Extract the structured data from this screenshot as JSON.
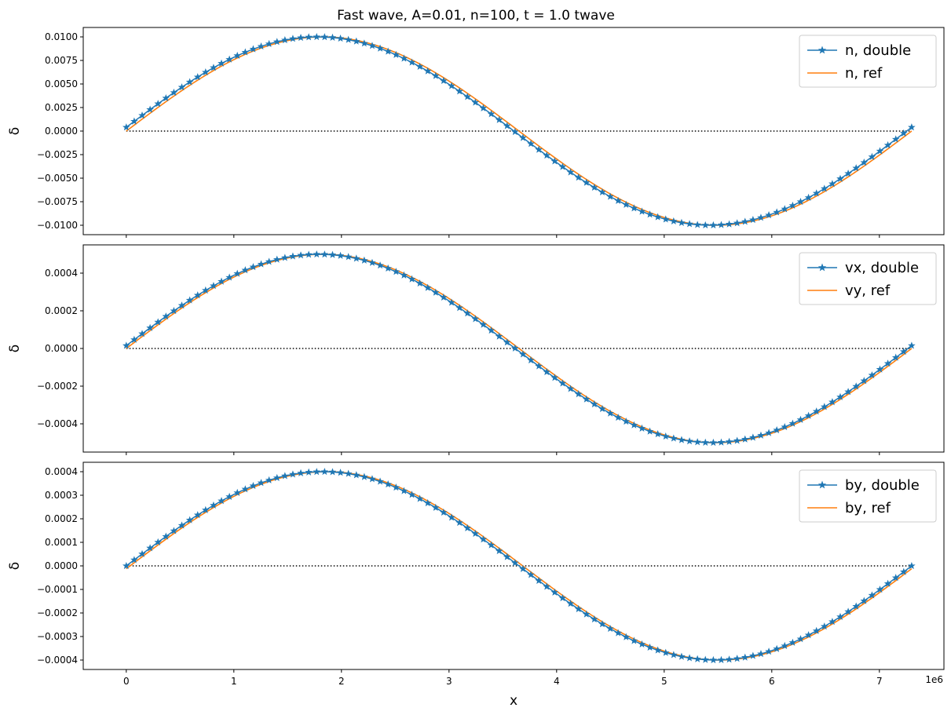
{
  "figure": {
    "title": "Fast wave, A=0.01, n=100, t = 1.0 twave",
    "xlabel": "x",
    "x_offset_label": "1e6"
  },
  "colors": {
    "series_double": "#1f77b4",
    "series_ref": "#ff7f0e",
    "zero_line": "#000000"
  },
  "chart_data": [
    {
      "type": "line",
      "ylabel": "δ",
      "amplitude": 0.01,
      "xlim": [
        -400000.0,
        7600000.0
      ],
      "ylim": [
        -0.011,
        0.011
      ],
      "x_ticks": [
        0,
        1000000,
        2000000,
        3000000,
        4000000,
        5000000,
        6000000,
        7000000
      ],
      "y_ticks": [
        -0.01,
        -0.0075,
        -0.005,
        -0.0025,
        0.0,
        0.0025,
        0.005,
        0.0075,
        0.01
      ],
      "y_tick_labels": [
        "−0.0100",
        "−0.0075",
        "−0.0050",
        "−0.0025",
        "0.0000",
        "0.0025",
        "0.0050",
        "0.0075",
        "0.0100"
      ],
      "x_tick_labels": [],
      "legend": "top-right",
      "series": [
        {
          "name": "n, double",
          "marker": "star",
          "x_range": [
            0,
            7300000
          ],
          "points": 100,
          "phase_shift": 0.04
        },
        {
          "name": "n, ref",
          "marker": "none",
          "x_range": [
            0,
            7300000
          ],
          "points": 200,
          "phase_shift": 0.0
        }
      ],
      "zero_line": {
        "x_range": [
          0,
          7300000
        ],
        "y": 0
      }
    },
    {
      "type": "line",
      "ylabel": "δ",
      "amplitude": 0.0005,
      "xlim": [
        -400000.0,
        7600000.0
      ],
      "ylim": [
        -0.00055,
        0.00055
      ],
      "x_ticks": [
        0,
        1000000,
        2000000,
        3000000,
        4000000,
        5000000,
        6000000,
        7000000
      ],
      "y_ticks": [
        -0.0004,
        -0.0002,
        0.0,
        0.0002,
        0.0004
      ],
      "y_tick_labels": [
        "−0.0004",
        "−0.0002",
        "0.0000",
        "0.0002",
        "0.0004"
      ],
      "x_tick_labels": [],
      "legend": "top-right",
      "series": [
        {
          "name": "vx, double",
          "marker": "star",
          "x_range": [
            0,
            7300000
          ],
          "points": 100,
          "phase_shift": 0.03
        },
        {
          "name": "vy, ref",
          "marker": "none",
          "x_range": [
            0,
            7300000
          ],
          "points": 200,
          "phase_shift": 0.0
        }
      ],
      "zero_line": {
        "x_range": [
          0,
          7300000
        ],
        "y": 0
      }
    },
    {
      "type": "line",
      "ylabel": "δ",
      "amplitude": 0.0004,
      "xlim": [
        -400000.0,
        7600000.0
      ],
      "ylim": [
        -0.00044,
        0.00044
      ],
      "x_ticks": [
        0,
        1000000,
        2000000,
        3000000,
        4000000,
        5000000,
        6000000,
        7000000
      ],
      "y_ticks": [
        -0.0004,
        -0.0003,
        -0.0002,
        -0.0001,
        0.0,
        0.0001,
        0.0002,
        0.0003,
        0.0004
      ],
      "y_tick_labels": [
        "−0.0004",
        "−0.0003",
        "−0.0002",
        "−0.0001",
        "0.0000",
        "0.0001",
        "0.0002",
        "0.0003",
        "0.0004"
      ],
      "x_tick_labels": [
        "0",
        "1",
        "2",
        "3",
        "4",
        "5",
        "6",
        "7"
      ],
      "legend": "top-right",
      "series": [
        {
          "name": "by, double",
          "marker": "star",
          "x_range": [
            0,
            7300000
          ],
          "points": 100,
          "phase_shift": 0.0
        },
        {
          "name": "by, ref",
          "marker": "none",
          "x_range": [
            0,
            7300000
          ],
          "points": 200,
          "phase_shift": -0.03
        }
      ],
      "zero_line": {
        "x_range": [
          0,
          7300000
        ],
        "y": 0
      }
    }
  ]
}
